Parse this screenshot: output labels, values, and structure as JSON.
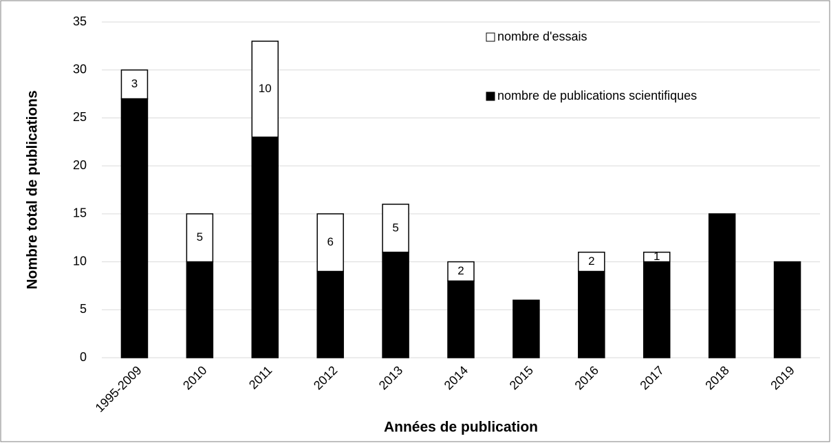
{
  "chart_data": {
    "type": "stacked_bar",
    "y_label": "Nombre total de publications",
    "x_label": "Années de publication",
    "categories": [
      "1995-2009",
      "2010",
      "2011",
      "2012",
      "2013",
      "2014",
      "2015",
      "2016",
      "2017",
      "2018",
      "2019"
    ],
    "series": [
      {
        "name": "nombre de publications scientifiques",
        "color": "#000000",
        "values": [
          27,
          10,
          23,
          9,
          11,
          8,
          6,
          9,
          10,
          15,
          10
        ]
      },
      {
        "name": "nombre d'essais",
        "color": "#ffffff",
        "values": [
          3,
          5,
          10,
          6,
          5,
          2,
          0,
          2,
          1,
          0,
          0
        ],
        "data_labels": true
      }
    ],
    "ylim": [
      0,
      35
    ],
    "yticks": [
      0,
      5,
      10,
      15,
      20,
      25,
      30,
      35
    ],
    "grid": true,
    "legend": "top-right"
  }
}
